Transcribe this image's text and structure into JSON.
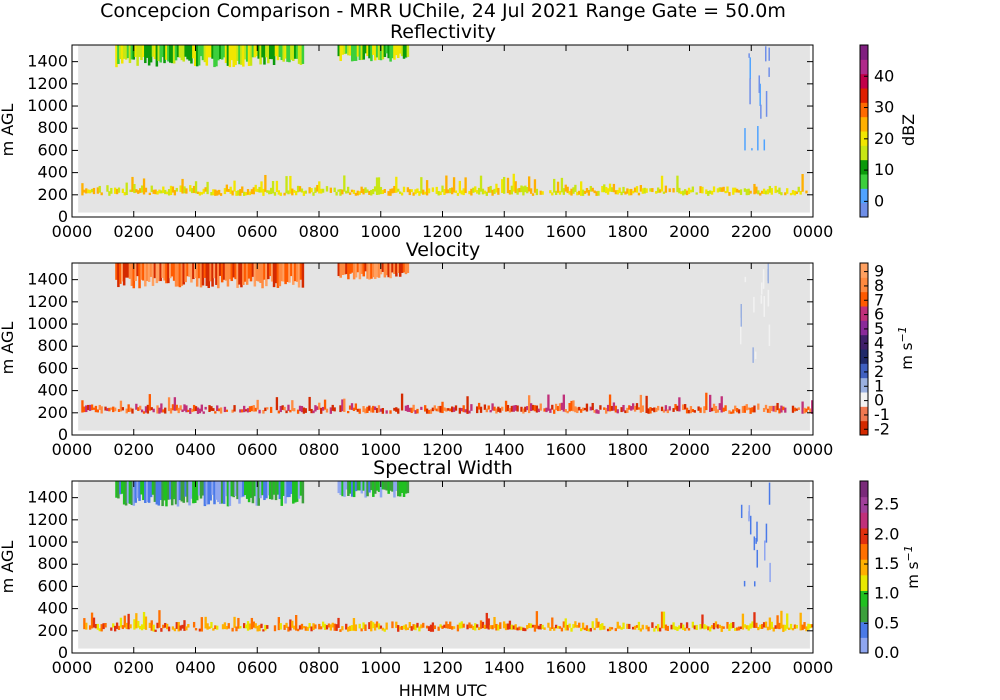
{
  "figure": {
    "suptitle": "Concepcion Comparison - MRR UChile, 24 Jul 2021 Range Gate = 50.0m",
    "xlabel": "HHMM UTC"
  },
  "chart_data": [
    {
      "type": "heatmap",
      "title": "Reflectivity",
      "ylabel": "m AGL",
      "x_ticks": [
        "0000",
        "0200",
        "0400",
        "0600",
        "0800",
        "1000",
        "1200",
        "1400",
        "1600",
        "1800",
        "2000",
        "2200",
        "0000"
      ],
      "xlim_hours": [
        0,
        24
      ],
      "y_ticks": [
        0,
        200,
        400,
        600,
        800,
        1000,
        1200,
        1400
      ],
      "ylim": [
        0,
        1550
      ],
      "grid": false,
      "colorbar": {
        "label": "dBZ",
        "ticks": [
          "0",
          "10",
          "20",
          "30",
          "40"
        ],
        "tick_values": [
          0,
          10,
          20,
          30,
          40
        ],
        "range": [
          -5,
          50
        ],
        "colors": [
          "#6f8fe8",
          "#4fa3ff",
          "#3ccf3c",
          "#0a9a0a",
          "#c8e614",
          "#f2e600",
          "#ffb000",
          "#ff6a00",
          "#e01e00",
          "#c2004a",
          "#b02a8a",
          "#802080"
        ]
      },
      "features": [
        {
          "kind": "upper-echo",
          "t_start": 1.4,
          "t_end": 7.5,
          "h_low": 1350,
          "h_high": 1550,
          "value_label": "10-22 dBZ"
        },
        {
          "kind": "upper-echo",
          "t_start": 8.6,
          "t_end": 10.9,
          "h_low": 1400,
          "h_high": 1550,
          "value_label": "10-20 dBZ"
        },
        {
          "kind": "column",
          "t_start": 21.6,
          "t_end": 22.6,
          "h_low": 600,
          "h_high": 1550,
          "value_label": "~0 dBZ"
        },
        {
          "kind": "clutter-band",
          "t_start": 0.3,
          "t_end": 24,
          "h_low": 150,
          "h_high": 350,
          "value_label": "15-25 dBZ"
        }
      ]
    },
    {
      "type": "heatmap",
      "title": "Velocity",
      "ylabel": "m s$^{-1}$",
      "ylabel_left": "m AGL",
      "x_ticks": [
        "0000",
        "0200",
        "0400",
        "0600",
        "0800",
        "1000",
        "1200",
        "1400",
        "1600",
        "1800",
        "2000",
        "2200",
        "0000"
      ],
      "xlim_hours": [
        0,
        24
      ],
      "y_ticks": [
        0,
        200,
        400,
        600,
        800,
        1000,
        1200,
        1400
      ],
      "ylim": [
        0,
        1550
      ],
      "grid": false,
      "colorbar": {
        "label": "m s",
        "label_superscript": "−1",
        "ticks": [
          "-2",
          "-1",
          "0",
          "1",
          "2",
          "3",
          "4",
          "5",
          "6",
          "7",
          "8",
          "9"
        ],
        "tick_values": [
          -2,
          -1,
          0,
          1,
          2,
          3,
          4,
          5,
          6,
          7,
          8,
          9
        ],
        "range": [
          -2.4,
          9.6
        ],
        "colors": [
          "#d42a00",
          "#f07850",
          "#f2f2f2",
          "#9ab0e0",
          "#4060c0",
          "#202a6a",
          "#40206a",
          "#8a2a9a",
          "#c0307a",
          "#ff5a00",
          "#ff8a40",
          "#ffa060"
        ]
      },
      "features": [
        {
          "kind": "upper-echo",
          "t_start": 1.4,
          "t_end": 7.5,
          "h_low": 1320,
          "h_high": 1550,
          "value_label": "~7-9 m/s"
        },
        {
          "kind": "upper-echo",
          "t_start": 8.6,
          "t_end": 10.9,
          "h_low": 1400,
          "h_high": 1550,
          "value_label": "~8 m/s"
        },
        {
          "kind": "column",
          "t_start": 21.6,
          "t_end": 22.6,
          "h_low": 650,
          "h_high": 1550,
          "value_label": "~1 m/s"
        },
        {
          "kind": "clutter-band",
          "t_start": 0.3,
          "t_end": 24,
          "h_low": 150,
          "h_high": 350,
          "value_label": "-2 to 6 m/s"
        }
      ]
    },
    {
      "type": "heatmap",
      "title": "Spectral Width",
      "ylabel": "m s$^{-1}$",
      "ylabel_left": "m AGL",
      "x_ticks": [
        "0000",
        "0200",
        "0400",
        "0600",
        "0800",
        "1000",
        "1200",
        "1400",
        "1600",
        "1800",
        "2000",
        "2200",
        "0000"
      ],
      "xlim_hours": [
        0,
        24
      ],
      "y_ticks": [
        0,
        200,
        400,
        600,
        800,
        1000,
        1200,
        1400
      ],
      "ylim": [
        0,
        1550
      ],
      "grid": false,
      "colorbar": {
        "label": "m s",
        "label_superscript": "−1",
        "ticks": [
          "0.0",
          "0.5",
          "1.0",
          "1.5",
          "2.0",
          "2.5"
        ],
        "tick_values": [
          0,
          0.5,
          1.0,
          1.5,
          2.0,
          2.5
        ],
        "range": [
          0,
          2.9
        ],
        "colors": [
          "#8fa6f0",
          "#4a7ae8",
          "#3ca03c",
          "#20c020",
          "#e8e800",
          "#ffb000",
          "#ff7000",
          "#e03010",
          "#c0307a",
          "#a0409a",
          "#7a2a7a"
        ]
      },
      "features": [
        {
          "kind": "upper-echo",
          "t_start": 1.4,
          "t_end": 7.5,
          "h_low": 1320,
          "h_high": 1550,
          "value_label": "~0.4-0.8 m/s"
        },
        {
          "kind": "upper-echo",
          "t_start": 8.6,
          "t_end": 10.9,
          "h_low": 1400,
          "h_high": 1550,
          "value_label": "~0.5 m/s"
        },
        {
          "kind": "column",
          "t_start": 21.6,
          "t_end": 22.6,
          "h_low": 600,
          "h_high": 1550,
          "value_label": "~0.3 m/s"
        },
        {
          "kind": "clutter-band",
          "t_start": 0.3,
          "t_end": 24,
          "h_low": 150,
          "h_high": 350,
          "value_label": "1.5-2.1 m/s"
        }
      ]
    }
  ]
}
